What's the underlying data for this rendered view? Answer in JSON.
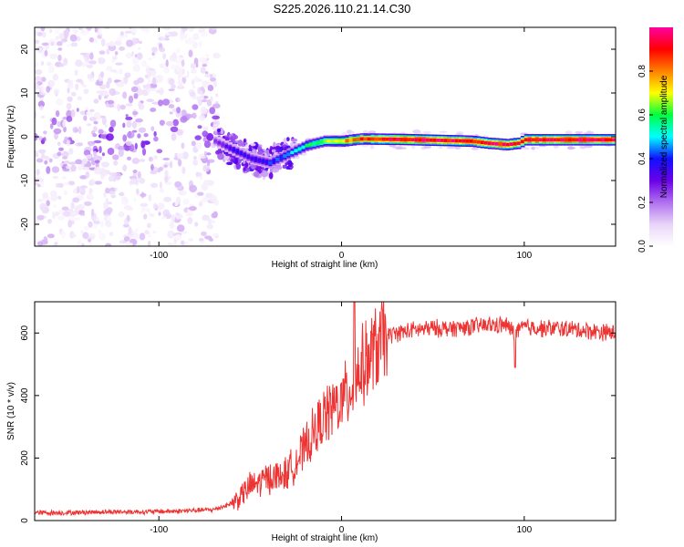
{
  "title": "S225.2026.110.21.14.C30",
  "chart_data": [
    {
      "type": "heatmap",
      "xlabel": "Height of straight line (km)",
      "ylabel": "Frequency (Hz)",
      "xlim": [
        -168,
        150
      ],
      "ylim": [
        -25,
        25
      ],
      "xticks": [
        -100,
        0,
        100
      ],
      "yticks": [
        -20,
        -10,
        0,
        10,
        20
      ],
      "grid": false,
      "colorbar": {
        "label": "Normalized spectral amplitude",
        "range": [
          0,
          1
        ],
        "ticks": [
          0.0,
          0.2,
          0.4,
          0.6,
          0.8
        ],
        "colors": [
          "#ffffff",
          "#e8d4f8",
          "#b070f0",
          "#6a00e8",
          "#1010ff",
          "#00ffff",
          "#00ff40",
          "#ffff00",
          "#ff8000",
          "#ff0000",
          "#ff00a0"
        ]
      },
      "regions": [
        {
          "x": [
            -168,
            -68
          ],
          "y": [
            -25,
            25
          ],
          "amplitude": 0.15,
          "pattern": "scattered noise"
        },
        {
          "x": [
            -68,
            -25
          ],
          "y": [
            -8,
            3
          ],
          "amplitude": 0.3,
          "pattern": "narrowing band"
        },
        {
          "x": [
            -25,
            150
          ],
          "y": [
            -2,
            0.5
          ],
          "amplitude": 0.9,
          "pattern": "strong narrow line"
        }
      ],
      "ridge": {
        "x": [
          -70,
          -60,
          -50,
          -40,
          -30,
          -20,
          -10,
          0,
          10,
          30,
          50,
          70,
          80,
          90,
          96,
          100,
          120,
          150
        ],
        "freq": [
          -1,
          -3,
          -5,
          -6,
          -4,
          -2,
          -1,
          -1,
          -0.5,
          -0.6,
          -0.8,
          -1,
          -1.5,
          -1.8,
          -1.5,
          -0.7,
          -0.7,
          -0.7
        ],
        "amplitude": [
          0.25,
          0.35,
          0.35,
          0.4,
          0.45,
          0.55,
          0.65,
          0.75,
          0.85,
          0.95,
          0.95,
          0.9,
          0.92,
          0.92,
          0.9,
          0.95,
          0.95,
          0.95
        ]
      }
    },
    {
      "type": "line",
      "xlabel": "Height of straight line (km)",
      "ylabel": "SNR (10 * v/v)",
      "xlim": [
        -168,
        150
      ],
      "ylim": [
        0,
        700
      ],
      "xticks": [
        -100,
        0,
        100
      ],
      "yticks": [
        0,
        200,
        400,
        600
      ],
      "grid": false,
      "color": "#ee3333",
      "series": [
        {
          "x": [
            -168,
            -150,
            -130,
            -110,
            -90,
            -70,
            -60,
            -55,
            -50,
            -45,
            -40,
            -35,
            -30,
            -25,
            -20,
            -15,
            -10,
            -5,
            0,
            5,
            7,
            10,
            15,
            20,
            25,
            30,
            40,
            50,
            60,
            70,
            80,
            90,
            95,
            100,
            110,
            120,
            130,
            140,
            150
          ],
          "y": [
            25,
            25,
            28,
            28,
            30,
            35,
            55,
            80,
            110,
            120,
            140,
            140,
            150,
            190,
            230,
            280,
            330,
            360,
            380,
            420,
            460,
            480,
            520,
            560,
            590,
            600,
            610,
            615,
            615,
            620,
            625,
            625,
            600,
            620,
            615,
            615,
            610,
            605,
            600
          ]
        }
      ],
      "spikes": [
        {
          "x": 7,
          "y": 700
        },
        {
          "x": 95,
          "y": 490
        }
      ]
    }
  ]
}
